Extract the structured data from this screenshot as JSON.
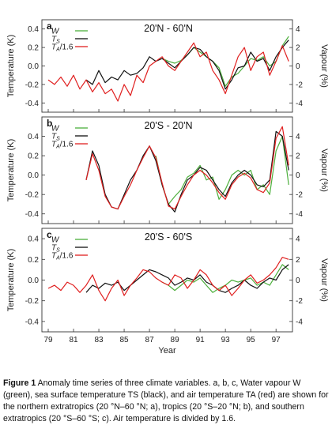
{
  "chart_data": [
    {
      "type": "line",
      "panel_letter": "a",
      "title": "20'N - 60'N",
      "ylabel_left": "Temperature (K)",
      "ylabel_right": "Vapour (%)",
      "ylim_left": [
        -0.5,
        0.5
      ],
      "ylim_right": [
        -5,
        5
      ],
      "left_ticks": [
        -0.4,
        -0.2,
        0.0,
        0.2,
        0.4
      ],
      "left_tick_labels": [
        "-0.4",
        "-0.2",
        "0.0",
        "0.2",
        "0.4"
      ],
      "right_ticks": [
        -4,
        -2,
        0,
        2,
        4
      ],
      "right_tick_labels": [
        "-4",
        "-2",
        "0",
        "2",
        "4"
      ],
      "legend": [
        "W",
        "TS",
        "TA/1.6"
      ],
      "grid": false,
      "series": [
        {
          "name": "W",
          "color": "#4caf3c",
          "x": [
            88.0,
            88.5,
            89.0,
            89.5,
            90.0,
            90.5,
            91.0,
            91.5,
            92.0,
            92.5,
            93.0,
            93.5,
            94.0,
            94.5,
            95.0,
            95.5,
            96.0,
            96.5,
            97.0,
            97.5,
            98.0
          ],
          "y": [
            0.08,
            0.05,
            0.03,
            0.06,
            0.12,
            0.2,
            0.15,
            0.1,
            0.05,
            -0.02,
            -0.22,
            -0.12,
            -0.08,
            0.0,
            0.08,
            0.06,
            0.1,
            0.0,
            0.05,
            0.22,
            0.32
          ]
        },
        {
          "name": "TS",
          "color": "#111111",
          "x": [
            82.0,
            82.5,
            83.0,
            83.5,
            84.0,
            84.5,
            85.0,
            85.5,
            86.0,
            86.5,
            87.0,
            87.5,
            88.0,
            88.5,
            89.0,
            89.5,
            90.0,
            90.5,
            91.0,
            91.5,
            92.0,
            92.5,
            93.0,
            93.5,
            94.0,
            94.5,
            95.0,
            95.5,
            96.0,
            96.5,
            97.0,
            97.5,
            98.0
          ],
          "y": [
            -0.15,
            -0.2,
            -0.05,
            -0.18,
            -0.12,
            -0.15,
            -0.05,
            -0.1,
            -0.08,
            -0.02,
            0.1,
            0.05,
            0.08,
            0.03,
            -0.02,
            0.05,
            0.12,
            0.2,
            0.18,
            0.1,
            0.05,
            -0.05,
            -0.25,
            -0.15,
            -0.02,
            0.0,
            0.15,
            0.05,
            0.08,
            -0.05,
            0.1,
            0.2,
            0.28
          ]
        },
        {
          "name": "TA/1.6",
          "color": "#e02020",
          "x": [
            79.0,
            79.5,
            80.0,
            80.5,
            81.0,
            81.5,
            82.0,
            82.5,
            83.0,
            83.5,
            84.0,
            84.5,
            85.0,
            85.5,
            86.0,
            86.5,
            87.0,
            87.5,
            88.0,
            88.5,
            89.0,
            89.5,
            90.0,
            90.5,
            91.0,
            91.5,
            92.0,
            92.5,
            93.0,
            93.5,
            94.0,
            94.5,
            95.0,
            95.5,
            96.0,
            96.5,
            97.0,
            97.5,
            98.0
          ],
          "y": [
            -0.15,
            -0.2,
            -0.12,
            -0.22,
            -0.1,
            -0.25,
            -0.15,
            -0.28,
            -0.18,
            -0.3,
            -0.25,
            -0.38,
            -0.2,
            -0.32,
            -0.1,
            -0.18,
            0.0,
            0.05,
            0.1,
            0.0,
            -0.05,
            0.05,
            0.15,
            0.25,
            0.1,
            0.15,
            -0.05,
            -0.15,
            -0.3,
            -0.1,
            0.1,
            0.2,
            -0.05,
            0.1,
            0.15,
            -0.1,
            0.05,
            0.22,
            0.05
          ]
        }
      ]
    },
    {
      "type": "line",
      "panel_letter": "b",
      "title": "20'S - 20'N",
      "ylabel_left": "Temperature (K)",
      "ylabel_right": "Vapour (%)",
      "ylim_left": [
        -0.5,
        0.6
      ],
      "ylim_right": [
        -5,
        6
      ],
      "left_ticks": [
        -0.4,
        -0.2,
        0.0,
        0.2,
        0.4
      ],
      "left_tick_labels": [
        "-0.4",
        "-0.2",
        "0.0",
        "0.2",
        "0.4"
      ],
      "right_ticks": [
        -4,
        -2,
        0,
        2,
        4
      ],
      "right_tick_labels": [
        "-4",
        "-2",
        "0",
        "2",
        "4"
      ],
      "legend": [
        "W",
        "TS",
        "TA/1.6"
      ],
      "grid": false,
      "series": [
        {
          "name": "W",
          "color": "#4caf3c",
          "x": [
            87.5,
            88.0,
            88.5,
            89.0,
            89.5,
            90.0,
            90.5,
            91.0,
            91.5,
            92.0,
            92.5,
            93.0,
            93.5,
            94.0,
            94.5,
            95.0,
            95.5,
            96.0,
            96.5,
            97.0,
            97.5,
            98.0
          ],
          "y": [
            0.2,
            -0.1,
            -0.3,
            -0.22,
            -0.15,
            -0.02,
            0.02,
            0.1,
            -0.05,
            -0.02,
            -0.25,
            -0.15,
            0.0,
            0.05,
            0.0,
            0.05,
            -0.15,
            -0.1,
            -0.2,
            0.25,
            0.4,
            -0.1
          ]
        },
        {
          "name": "TS",
          "color": "#111111",
          "x": [
            82.0,
            82.5,
            83.0,
            83.5,
            84.0,
            84.5,
            85.0,
            85.5,
            86.0,
            86.5,
            87.0,
            87.5,
            88.0,
            88.5,
            89.0,
            89.5,
            90.0,
            90.5,
            91.0,
            91.5,
            92.0,
            92.5,
            93.0,
            93.5,
            94.0,
            94.5,
            95.0,
            95.5,
            96.0,
            96.5,
            97.0,
            97.5,
            98.0
          ],
          "y": [
            -0.05,
            0.25,
            0.1,
            -0.2,
            -0.33,
            -0.35,
            -0.2,
            -0.05,
            0.05,
            0.2,
            0.3,
            0.15,
            -0.1,
            -0.3,
            -0.38,
            -0.2,
            -0.05,
            0.0,
            0.08,
            0.05,
            -0.05,
            -0.15,
            -0.22,
            -0.08,
            0.0,
            0.05,
            0.0,
            -0.1,
            -0.12,
            -0.05,
            0.45,
            0.4,
            0.05
          ]
        },
        {
          "name": "TA/1.6",
          "color": "#e02020",
          "x": [
            82.0,
            82.5,
            83.0,
            83.5,
            84.0,
            84.5,
            85.0,
            85.5,
            86.0,
            86.5,
            87.0,
            87.5,
            88.0,
            88.5,
            89.0,
            89.5,
            90.0,
            90.5,
            91.0,
            91.5,
            92.0,
            92.5,
            93.0,
            93.5,
            94.0,
            94.5,
            95.0,
            95.5,
            96.0,
            96.5,
            97.0,
            97.5,
            98.0
          ],
          "y": [
            -0.05,
            0.22,
            0.05,
            -0.22,
            -0.33,
            -0.35,
            -0.22,
            -0.1,
            0.05,
            0.18,
            0.3,
            0.18,
            -0.08,
            -0.32,
            -0.35,
            -0.22,
            -0.1,
            0.0,
            0.05,
            0.0,
            -0.08,
            -0.18,
            -0.25,
            -0.1,
            -0.02,
            0.02,
            -0.03,
            -0.15,
            -0.18,
            -0.08,
            0.38,
            0.5,
            0.1
          ]
        }
      ]
    },
    {
      "type": "line",
      "panel_letter": "c",
      "title": "20'S - 60'S",
      "ylabel_left": "Temperature (K)",
      "ylabel_right": "Vapour (%)",
      "xlabel": "Year",
      "ylim_left": [
        -0.5,
        0.5
      ],
      "ylim_right": [
        -5,
        5
      ],
      "left_ticks": [
        -0.4,
        -0.2,
        0.0,
        0.2,
        0.4
      ],
      "left_tick_labels": [
        "-0.4",
        "-0.2",
        "0.0",
        "0.2",
        "0.4"
      ],
      "right_ticks": [
        -4,
        -2,
        0,
        2,
        4
      ],
      "right_tick_labels": [
        "-4",
        "-2",
        "0",
        "2",
        "4"
      ],
      "x_ticks": [
        79,
        81,
        83,
        85,
        87,
        89,
        91,
        93,
        95,
        97
      ],
      "x_tick_labels": [
        "79",
        "81",
        "83",
        "85",
        "87",
        "89",
        "91",
        "93",
        "95",
        "97"
      ],
      "xlim": [
        78.5,
        98.3
      ],
      "legend": [
        "W",
        "TS",
        "TA/1.6"
      ],
      "grid": false,
      "series": [
        {
          "name": "W",
          "color": "#4caf3c",
          "x": [
            88.0,
            88.5,
            89.0,
            89.5,
            90.0,
            90.5,
            91.0,
            91.5,
            92.0,
            92.5,
            93.0,
            93.5,
            94.0,
            94.5,
            95.0,
            95.5,
            96.0,
            96.5,
            97.0,
            97.5,
            98.0
          ],
          "y": [
            -0.02,
            -0.05,
            -0.1,
            -0.05,
            0.0,
            -0.02,
            0.02,
            -0.05,
            -0.12,
            -0.08,
            -0.05,
            0.0,
            -0.02,
            0.0,
            0.02,
            -0.05,
            -0.02,
            -0.05,
            0.05,
            0.15,
            0.1
          ]
        },
        {
          "name": "TS",
          "color": "#111111",
          "x": [
            82.0,
            82.5,
            83.0,
            83.5,
            84.0,
            84.5,
            85.0,
            85.5,
            86.0,
            86.5,
            87.0,
            87.5,
            88.0,
            88.5,
            89.0,
            89.5,
            90.0,
            90.5,
            91.0,
            91.5,
            92.0,
            92.5,
            93.0,
            93.5,
            94.0,
            94.5,
            95.0,
            95.5,
            96.0,
            96.5,
            97.0,
            97.5,
            98.0
          ],
          "y": [
            -0.12,
            -0.05,
            -0.08,
            -0.03,
            -0.05,
            -0.02,
            -0.1,
            -0.05,
            0.0,
            0.05,
            0.1,
            0.08,
            0.05,
            0.02,
            -0.05,
            -0.02,
            0.02,
            0.0,
            0.05,
            -0.02,
            -0.05,
            -0.1,
            -0.12,
            -0.08,
            -0.05,
            0.0,
            -0.05,
            -0.08,
            -0.02,
            0.02,
            0.0,
            0.1,
            0.15
          ]
        },
        {
          "name": "TA/1.6",
          "color": "#e02020",
          "x": [
            79.0,
            79.5,
            80.0,
            80.5,
            81.0,
            81.5,
            82.0,
            82.5,
            83.0,
            83.5,
            84.0,
            84.5,
            85.0,
            85.5,
            86.0,
            86.5,
            87.0,
            87.5,
            88.0,
            88.5,
            89.0,
            89.5,
            90.0,
            90.5,
            91.0,
            91.5,
            92.0,
            92.5,
            93.0,
            93.5,
            94.0,
            94.5,
            95.0,
            95.5,
            96.0,
            96.5,
            97.0,
            97.5,
            98.0
          ],
          "y": [
            -0.08,
            -0.05,
            -0.1,
            -0.02,
            -0.05,
            -0.12,
            -0.05,
            0.05,
            -0.1,
            -0.2,
            -0.08,
            0.0,
            -0.15,
            -0.05,
            0.02,
            0.1,
            0.08,
            0.02,
            -0.02,
            -0.05,
            0.05,
            0.02,
            -0.08,
            0.0,
            0.1,
            0.05,
            -0.05,
            -0.1,
            -0.05,
            -0.15,
            -0.08,
            0.0,
            0.05,
            -0.03,
            0.0,
            0.05,
            0.12,
            0.22,
            0.2
          ]
        }
      ]
    }
  ],
  "caption": {
    "figure_label": "Figure 1",
    "text": "Anomaly time series of three climate variables. a, b, c, Water vapour W (green), sea surface temperature TS (black), and air temperature TA (red) are shown for the northern extratropics (20 °N–60 °N; a), tropics (20 °S–20 °N; b), and southern extratropics (20 °S–60 °S; c). Air temperature is divided by 1.6."
  }
}
